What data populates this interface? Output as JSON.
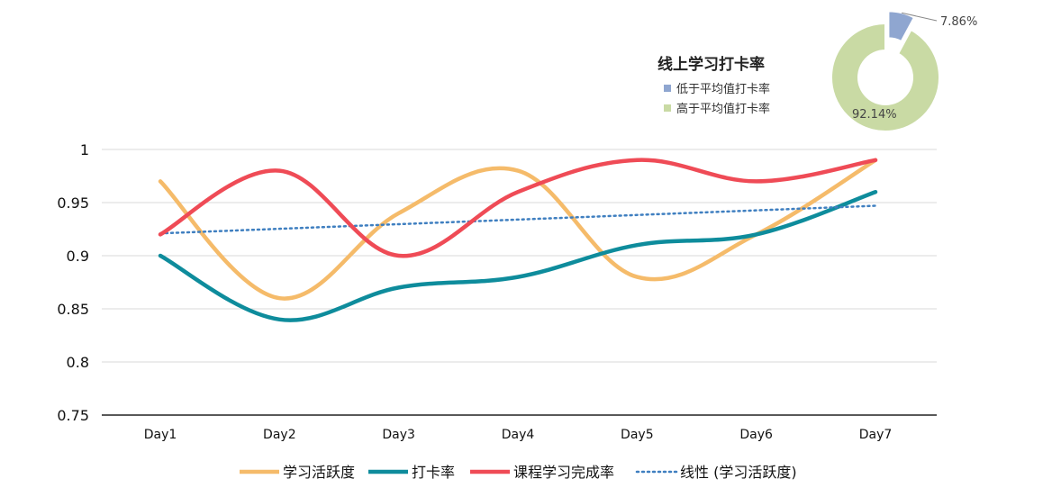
{
  "chart_data": [
    {
      "type": "line",
      "categories": [
        "Day1",
        "Day2",
        "Day3",
        "Day4",
        "Day5",
        "Day6",
        "Day7"
      ],
      "ylim": [
        0.75,
        1.0
      ],
      "yticks": [
        "1",
        "0.95",
        "0.9",
        "0.85",
        "0.8",
        "0.75"
      ],
      "ytick_values": [
        1.0,
        0.95,
        0.9,
        0.85,
        0.8,
        0.75
      ],
      "grid": true,
      "legend_position": "bottom",
      "series": [
        {
          "name": "学习活跃度",
          "color": "#F5BB6A",
          "style": "smooth",
          "values": [
            0.97,
            0.86,
            0.94,
            0.98,
            0.88,
            0.92,
            0.99
          ]
        },
        {
          "name": "打卡率",
          "color": "#0E8C9C",
          "style": "smooth",
          "values": [
            0.9,
            0.84,
            0.87,
            0.88,
            0.91,
            0.92,
            0.96
          ]
        },
        {
          "name": "课程学习完成率",
          "color": "#EF4B56",
          "style": "smooth",
          "values": [
            0.92,
            0.98,
            0.9,
            0.96,
            0.99,
            0.97,
            0.99
          ]
        },
        {
          "name": "线性 (学习活跃度)",
          "color": "#3F7FC0",
          "style": "dotted",
          "values": [
            0.921,
            0.925,
            0.929,
            0.934,
            0.939,
            0.943,
            0.947
          ]
        }
      ]
    },
    {
      "type": "pie",
      "title": "线上学习打卡率",
      "legend_position": "left",
      "slices": [
        {
          "label": "低于平均值打卡率",
          "value": 7.86,
          "text": "7.86%",
          "color": "#8FA6D0",
          "exploded": true
        },
        {
          "label": "高于平均值打卡率",
          "value": 92.14,
          "text": "92.14%",
          "color": "#C9DAA4",
          "exploded": false
        }
      ]
    }
  ]
}
